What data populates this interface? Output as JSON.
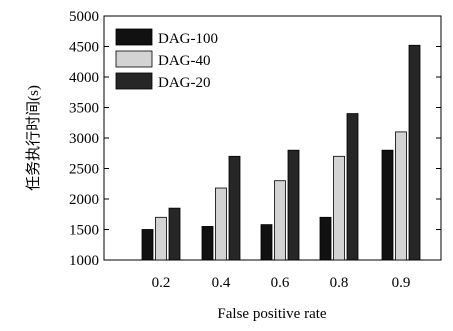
{
  "chart_data": {
    "type": "bar",
    "categories": [
      "0.2",
      "0.4",
      "0.6",
      "0.8",
      "0.9"
    ],
    "series": [
      {
        "name": "DAG-100",
        "values": [
          1500,
          1550,
          1580,
          1700,
          2800
        ],
        "color": "#111111"
      },
      {
        "name": "DAG-40",
        "values": [
          1700,
          2180,
          2300,
          2700,
          3100
        ],
        "color": "#d3d3d3"
      },
      {
        "name": "DAG-20",
        "values": [
          1850,
          2700,
          2800,
          3400,
          4520
        ],
        "color": "#262626"
      }
    ],
    "xlabel": "False positive rate",
    "ylabel": "任务执行时间(s)",
    "ylim": [
      1000,
      5000
    ],
    "yticks": [
      "1000",
      "1500",
      "2000",
      "2500",
      "3000",
      "3500",
      "4000",
      "4500",
      "5000"
    ],
    "grid": false,
    "legend_position": "top-left"
  }
}
